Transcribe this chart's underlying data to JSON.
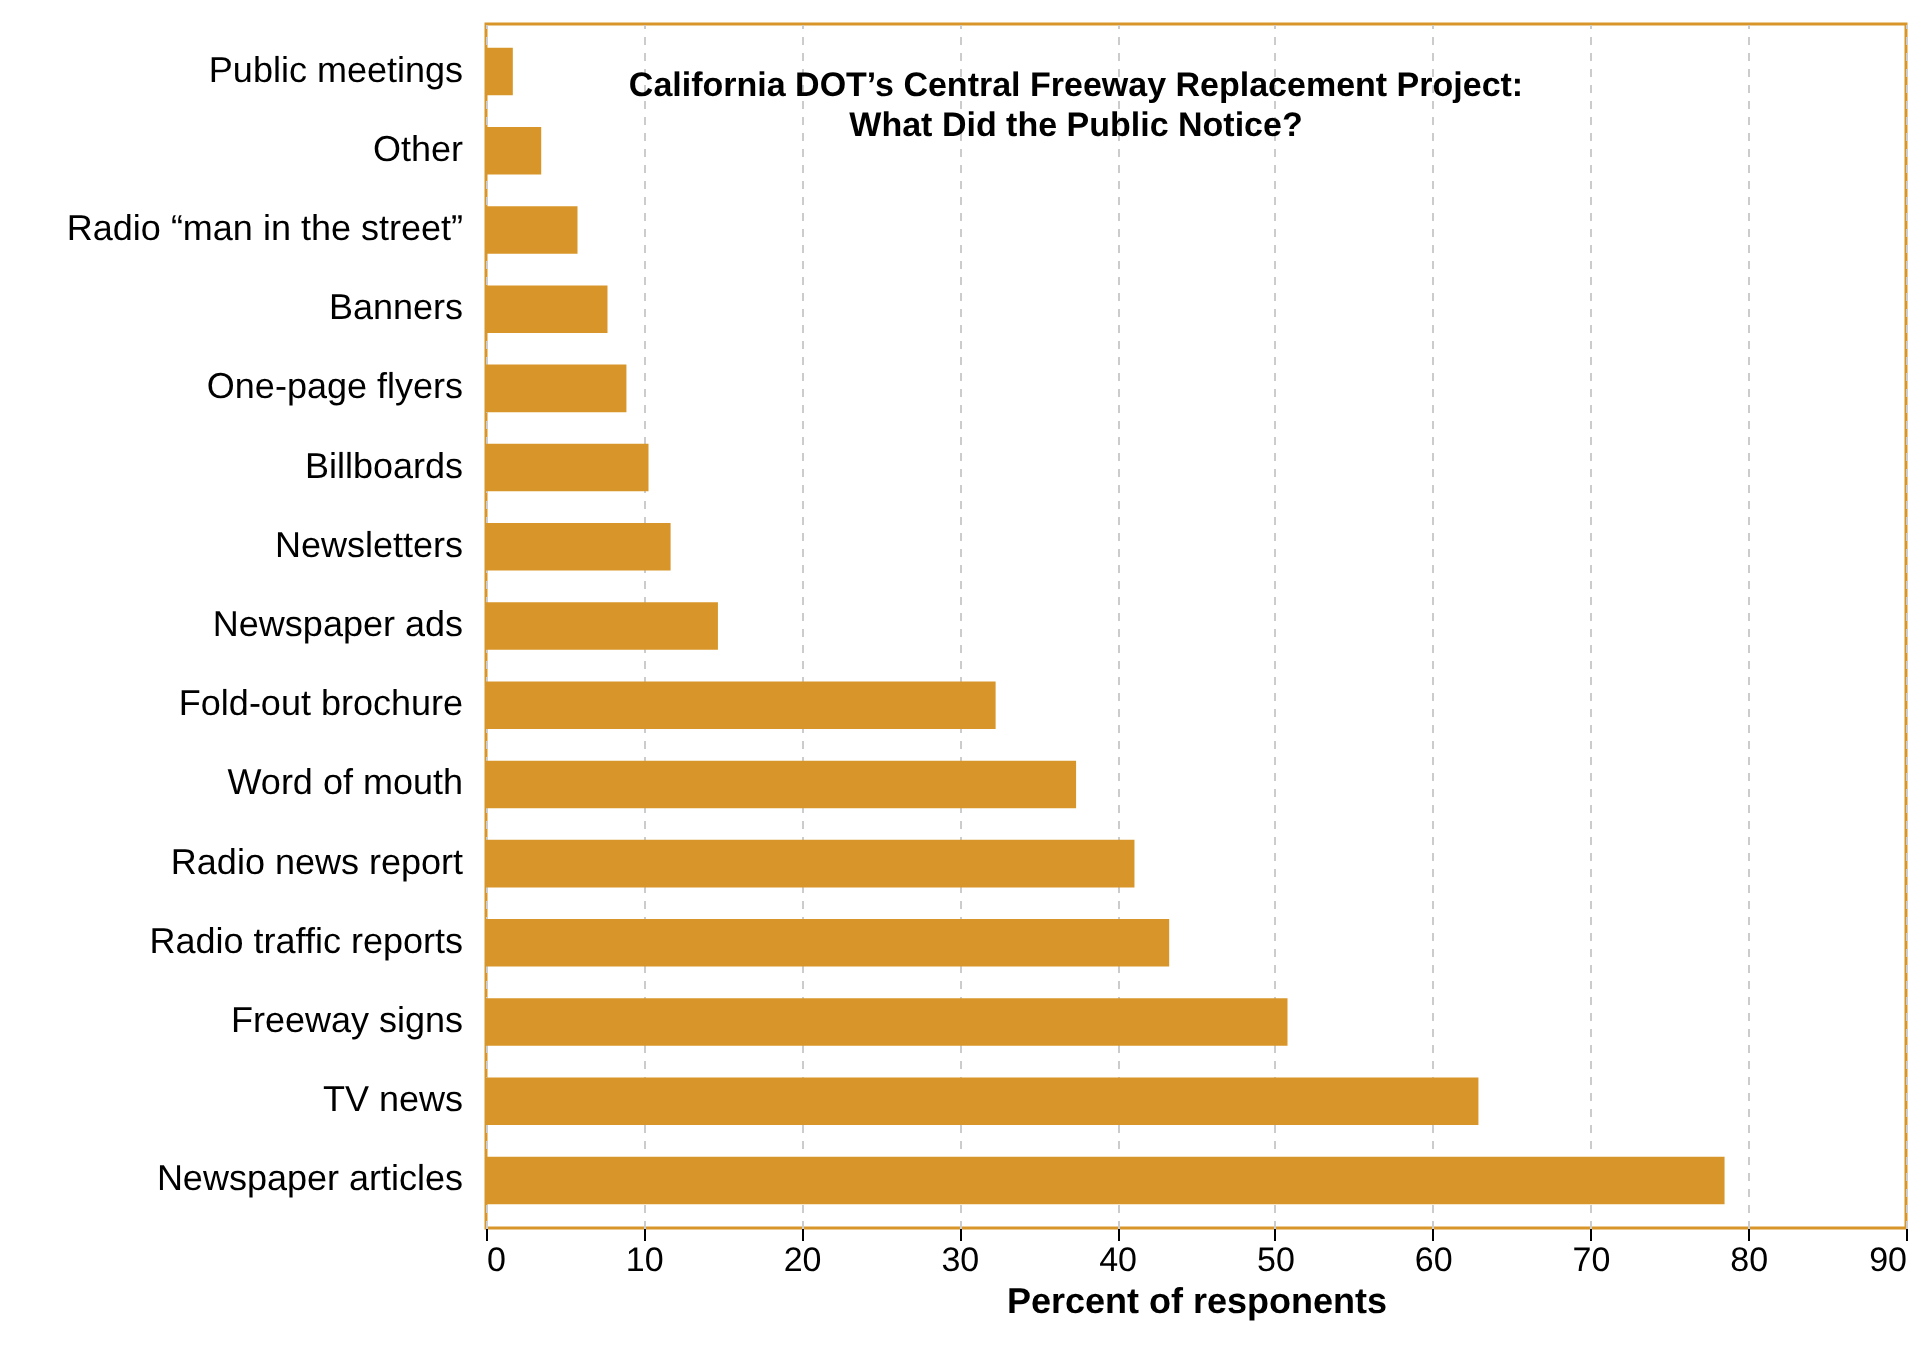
{
  "chart_data": {
    "type": "bar",
    "orientation": "horizontal",
    "title": "California DOT’s Central Freeway Replacement Project:\nWhat Did the Public Notice?",
    "xlabel": "Percent of responents",
    "categories": [
      "Public meetings",
      "Other",
      "Radio “man in the street”",
      "Banners",
      "One-page flyers",
      "Billboards",
      "Newsletters",
      "Newspaper ads",
      "Fold-out brochure",
      "Word of mouth",
      "Radio news report",
      "Radio traffic reports",
      "Freeway signs",
      "TV news",
      "Newspaper articles"
    ],
    "values": [
      1.7,
      3.5,
      5.8,
      7.7,
      8.9,
      10.3,
      11.7,
      14.7,
      32.3,
      37.4,
      41.1,
      43.3,
      50.8,
      62.9,
      78.5
    ],
    "color": "#d8962a",
    "xlim": [
      0,
      90
    ],
    "xticks": [
      0,
      10,
      20,
      30,
      40,
      50,
      60,
      70,
      80,
      90
    ],
    "grid": "x"
  }
}
